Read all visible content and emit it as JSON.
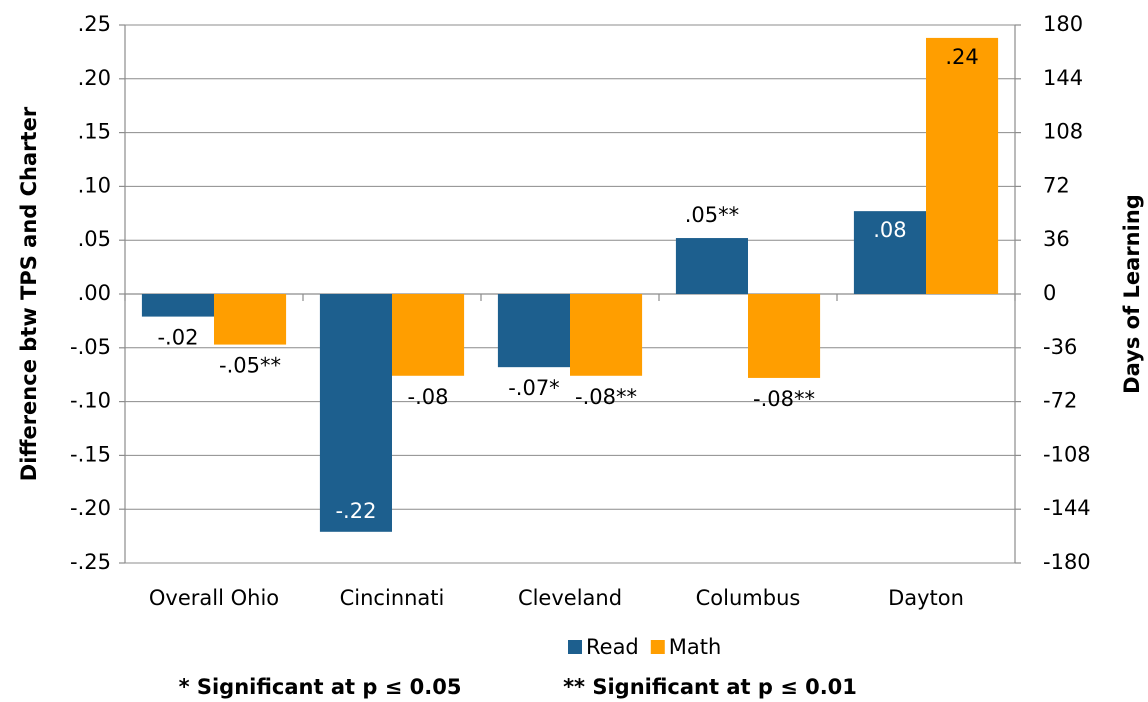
{
  "chart_data": {
    "type": "bar",
    "y_label": "Difference btw TPS and Charter",
    "y2_label": "Days of Learning",
    "categories": [
      "Overall Ohio",
      "Cincinnati",
      "Cleveland",
      "Columbus",
      "Dayton"
    ],
    "series": [
      {
        "name": "Read",
        "color": "#1d5f8e",
        "values": [
          -0.021,
          -0.221,
          -0.068,
          0.052,
          0.077
        ],
        "value_labels": [
          "-.02",
          "-.22",
          "-.07*",
          ".05**",
          ".08"
        ]
      },
      {
        "name": "Math",
        "color": "#ff9e00",
        "values": [
          -0.047,
          -0.076,
          -0.076,
          -0.078,
          0.238
        ],
        "value_labels": [
          "-.05**",
          "-.08",
          "-.08**",
          "-.08**",
          ".24"
        ]
      }
    ],
    "ylim": [
      -0.25,
      0.25
    ],
    "yticks": [
      {
        "value": 0.25,
        "label": ".25"
      },
      {
        "value": 0.2,
        "label": ".20"
      },
      {
        "value": 0.15,
        "label": ".15"
      },
      {
        "value": 0.1,
        "label": ".10"
      },
      {
        "value": 0.05,
        "label": ".05"
      },
      {
        "value": 0,
        "label": ".00"
      },
      {
        "value": -0.05,
        "label": "-.05"
      },
      {
        "value": -0.1,
        "label": "-.10"
      },
      {
        "value": -0.15,
        "label": "-.15"
      },
      {
        "value": -0.2,
        "label": "-.20"
      },
      {
        "value": -0.25,
        "label": "-.25"
      }
    ],
    "y2lim": [
      -180,
      180
    ],
    "y2ticks": [
      180,
      144,
      108,
      72,
      36,
      0,
      -36,
      -72,
      -108,
      -144,
      -180
    ],
    "grid": true,
    "legend": "bottom",
    "footnotes": [
      "* Significant at p ≤ 0.05",
      "** Significant at p ≤ 0.01"
    ]
  }
}
